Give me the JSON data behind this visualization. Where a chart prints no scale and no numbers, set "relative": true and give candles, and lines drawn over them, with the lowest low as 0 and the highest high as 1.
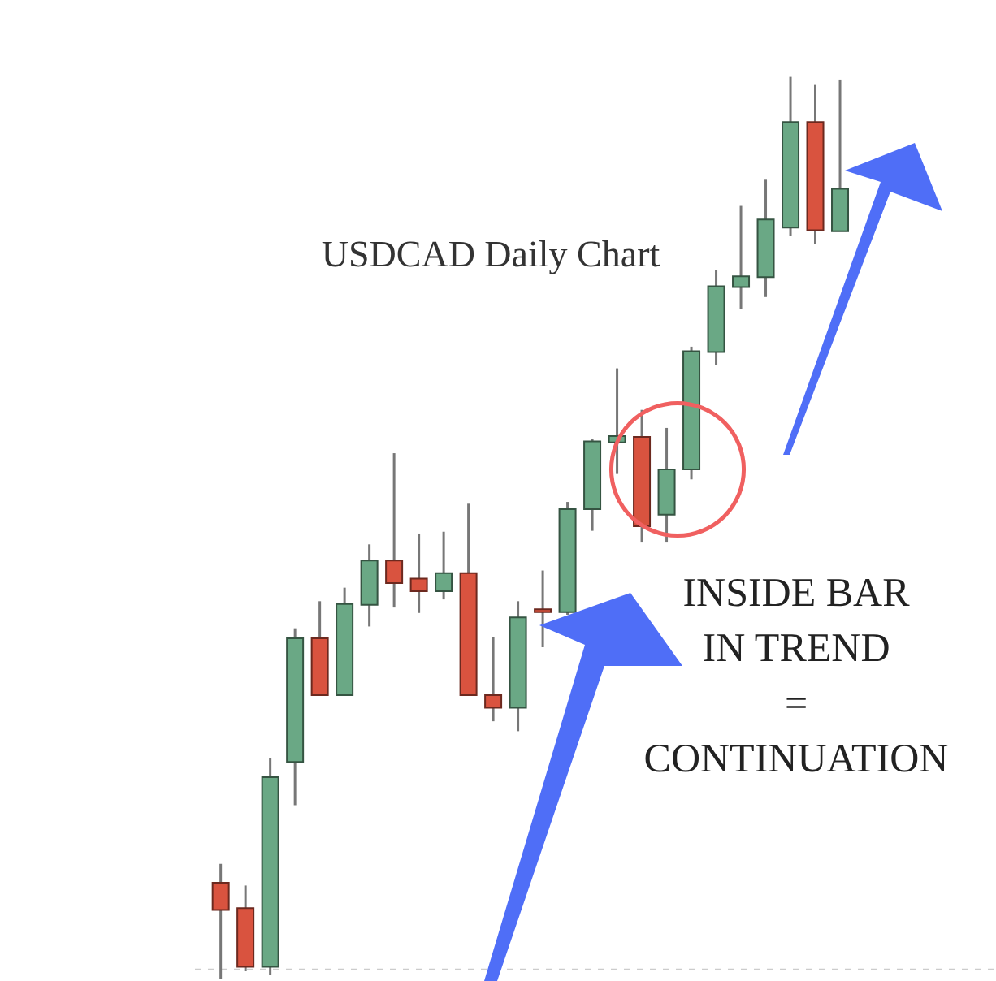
{
  "chart_data": {
    "type": "candlestick",
    "relative": true,
    "title": "USDCAD Daily Chart",
    "annotations": [
      "INSIDE BAR\nIN TREND\n=\nCONTINUATION"
    ],
    "categories": [
      null,
      null,
      null,
      null,
      null,
      null,
      null,
      null,
      null,
      null,
      null,
      null,
      null,
      null,
      null,
      null,
      null,
      null,
      null,
      null,
      null,
      null,
      null,
      null,
      null,
      null
    ],
    "ohlc": [
      [
        0.107,
        0.128,
        0,
        0.077
      ],
      [
        0.079,
        0.104,
        0.009,
        0.014
      ],
      [
        0.014,
        0.245,
        0.005,
        0.224
      ],
      [
        0.241,
        0.389,
        0.193,
        0.378
      ],
      [
        0.378,
        0.419,
        0.315,
        0.315
      ],
      [
        0.315,
        0.434,
        0.315,
        0.416
      ],
      [
        0.415,
        0.482,
        0.391,
        0.464
      ],
      [
        0.464,
        0.583,
        0.412,
        0.439
      ],
      [
        0.444,
        0.494,
        0.406,
        0.43
      ],
      [
        0.43,
        0.496,
        0.421,
        0.45
      ],
      [
        0.45,
        0.527,
        0.315,
        0.315
      ],
      [
        0.315,
        0.379,
        0.286,
        0.301
      ],
      [
        0.301,
        0.419,
        0.275,
        0.401
      ],
      [
        0.41,
        0.453,
        0.368,
        0.407
      ],
      [
        0.407,
        0.529,
        0.404,
        0.521
      ],
      [
        0.521,
        0.599,
        0.497,
        0.596
      ],
      [
        0.595,
        0.677,
        0.56,
        0.602
      ],
      [
        0.601,
        0.631,
        0.484,
        0.502
      ],
      [
        0.515,
        0.611,
        0.484,
        0.565
      ],
      [
        0.565,
        0.701,
        0.554,
        0.696
      ],
      [
        0.695,
        0.786,
        0.681,
        0.768
      ],
      [
        0.767,
        0.857,
        0.743,
        0.779
      ],
      [
        0.778,
        0.886,
        0.756,
        0.842
      ],
      [
        0.833,
        1,
        0.824,
        0.95
      ],
      [
        0.95,
        0.991,
        0.815,
        0.83
      ],
      [
        0.829,
        0.997,
        0.829,
        0.876
      ]
    ],
    "colors": [
      "#d9533f",
      "#d9533f",
      "#6aa885",
      "#6aa885",
      "#d9533f",
      "#6aa885",
      "#6aa885",
      "#d9533f",
      "#d9533f",
      "#6aa885",
      "#d9533f",
      "#d9533f",
      "#6aa885",
      "#d9533f",
      "#6aa885",
      "#6aa885",
      "#6aa885",
      "#d9533f",
      "#6aa885",
      "#6aa885",
      "#6aa885",
      "#6aa885",
      "#6aa885",
      "#6aa885",
      "#d9533f",
      "#6aa885"
    ],
    "ref_lines": [
      {
        "axis": "y",
        "value": 0.011,
        "color": "#cccccc",
        "line_style": "dashed"
      }
    ]
  }
}
